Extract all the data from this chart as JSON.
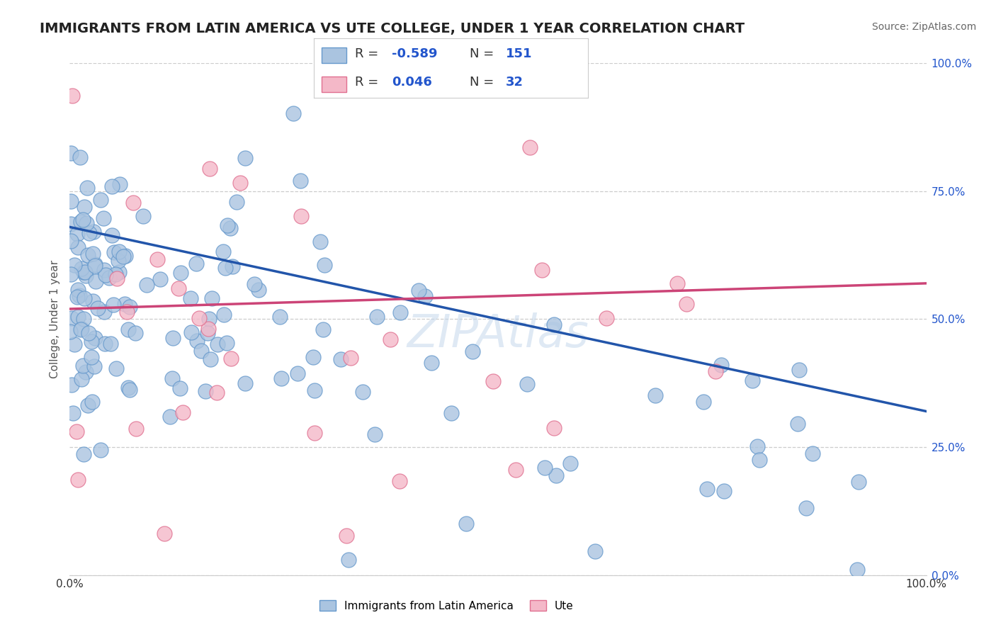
{
  "title": "IMMIGRANTS FROM LATIN AMERICA VS UTE COLLEGE, UNDER 1 YEAR CORRELATION CHART",
  "source": "Source: ZipAtlas.com",
  "ylabel": "College, Under 1 year",
  "right_ytick_labels": [
    "0.0%",
    "25.0%",
    "50.0%",
    "75.0%",
    "100.0%"
  ],
  "right_ytick_values": [
    0.0,
    0.25,
    0.5,
    0.75,
    1.0
  ],
  "xtick_labels": [
    "0.0%",
    "",
    "",
    "",
    "",
    "100.0%"
  ],
  "xtick_values": [
    0.0,
    0.2,
    0.4,
    0.6,
    0.8,
    1.0
  ],
  "xmin": 0.0,
  "xmax": 1.0,
  "ymin": 0.0,
  "ymax": 1.0,
  "series1_label": "Immigrants from Latin America",
  "series1_R": -0.589,
  "series1_N": 151,
  "series1_color": "#aac4e0",
  "series1_edge_color": "#6699cc",
  "series1_line_color": "#2255aa",
  "series2_label": "Ute",
  "series2_R": 0.046,
  "series2_N": 32,
  "series2_color": "#f4b8c8",
  "series2_edge_color": "#e07090",
  "series2_line_color": "#cc4477",
  "legend_R_color": "#2255cc",
  "background_color": "#ffffff",
  "watermark": "ZIPAtlas",
  "title_fontsize": 14,
  "source_fontsize": 10,
  "label_fontsize": 11,
  "tick_fontsize": 11,
  "grid_color": "#cccccc",
  "grid_linestyle": "--",
  "blue_line_x0": 0.0,
  "blue_line_y0": 0.68,
  "blue_line_x1": 1.0,
  "blue_line_y1": 0.32,
  "pink_line_x0": 0.0,
  "pink_line_y0": 0.52,
  "pink_line_x1": 1.0,
  "pink_line_y1": 0.57
}
